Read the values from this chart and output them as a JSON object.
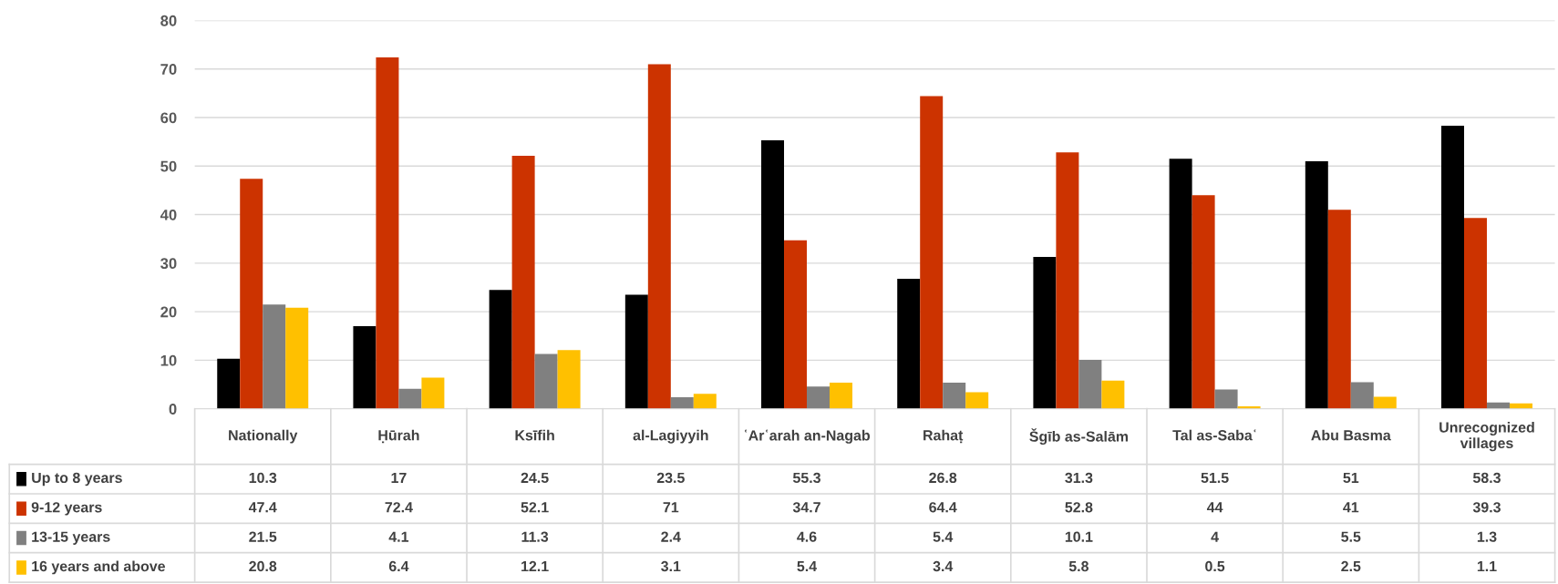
{
  "chart_data": {
    "type": "bar",
    "categories": [
      "Nationally",
      "Ḥūrah",
      "Ksīfih",
      "al-Lagiyyih",
      "ʿArʿarah an-Nagab",
      "Rahaṭ",
      "Šgīb as-Salām",
      "Tal as-Sabaʿ",
      "Abu Basma",
      "Unrecognized villages"
    ],
    "series": [
      {
        "name": "Up to 8 years",
        "color": "#000000",
        "values": [
          10.3,
          17,
          24.5,
          23.5,
          55.3,
          26.8,
          31.3,
          51.5,
          51,
          58.3
        ]
      },
      {
        "name": "9-12 years",
        "color": "#cc3300",
        "values": [
          47.4,
          72.4,
          52.1,
          71,
          34.7,
          64.4,
          52.8,
          44,
          41,
          39.3
        ]
      },
      {
        "name": "13-15 years",
        "color": "#808080",
        "values": [
          21.5,
          4.1,
          11.3,
          2.4,
          4.6,
          5.4,
          10.1,
          4,
          5.5,
          1.3
        ]
      },
      {
        "name": "16 years and above",
        "color": "#ffc000",
        "values": [
          20.8,
          6.4,
          12.1,
          3.1,
          5.4,
          3.4,
          5.8,
          0.5,
          2.5,
          1.1
        ]
      }
    ],
    "ylim": [
      0,
      80
    ],
    "yticks": [
      0,
      10,
      20,
      30,
      40,
      50,
      60,
      70,
      80
    ],
    "grid": "y",
    "legend": "bottom",
    "data_labels": true
  }
}
